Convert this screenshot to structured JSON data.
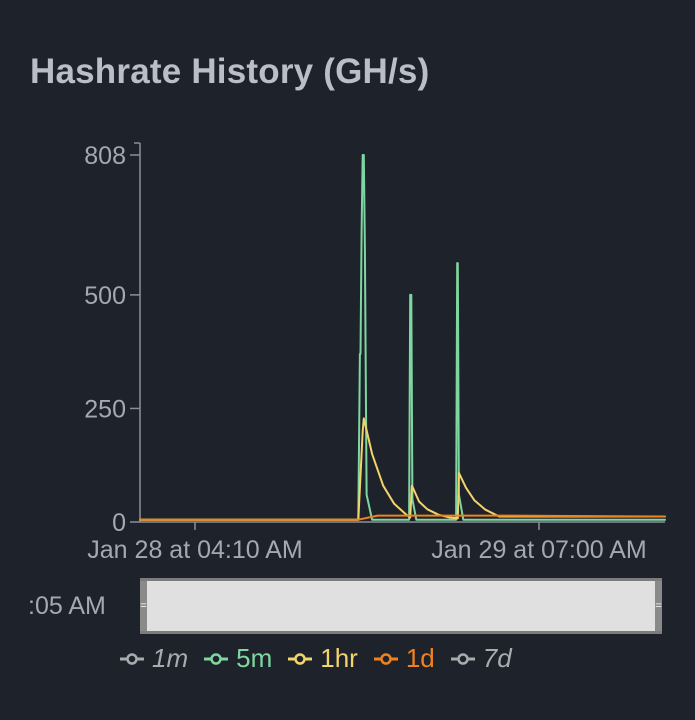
{
  "chart_data": {
    "type": "line",
    "title": "Hashrate History (GH/s)",
    "xlabel": "",
    "ylabel": "",
    "ylim": [
      0,
      808
    ],
    "yticks": [
      0,
      250,
      500,
      808
    ],
    "xtick_labels": [
      "Jan 28 at 04:10 AM",
      "Jan 29 at 07:00 AM"
    ],
    "x_unit": "minutes",
    "series": [
      {
        "name": "5m",
        "color": "#7fd6a0",
        "x": [
          0,
          395,
          398,
          399,
          401,
          403,
          405,
          407,
          410,
          420,
          487,
          489,
          491,
          493,
          500,
          572,
          574,
          575,
          577,
          585,
          950
        ],
        "values": [
          5,
          5,
          370,
          370,
          640,
          808,
          808,
          600,
          60,
          5,
          5,
          500,
          500,
          50,
          5,
          5,
          570,
          570,
          60,
          5,
          5
        ]
      },
      {
        "name": "1hr",
        "color": "#f3d36b",
        "x": [
          0,
          395,
          403,
          405,
          420,
          440,
          460,
          480,
          489,
          492,
          493,
          505,
          520,
          540,
          560,
          575,
          577,
          590,
          605,
          625,
          650,
          950
        ],
        "values": [
          5,
          5,
          200,
          228,
          150,
          80,
          40,
          18,
          10,
          80,
          78,
          45,
          28,
          16,
          10,
          8,
          108,
          75,
          48,
          27,
          12,
          12
        ]
      },
      {
        "name": "1d",
        "color": "#f0821e",
        "x": [
          0,
          395,
          430,
          650,
          950
        ],
        "values": [
          5,
          5,
          14,
          14,
          12
        ]
      }
    ],
    "legend": {
      "placement": "bottom",
      "entries": [
        {
          "name": "1m",
          "color": "#a9abae",
          "italic": true
        },
        {
          "name": "5m",
          "color": "#7fd6a0",
          "italic": false
        },
        {
          "name": "1hr",
          "color": "#f3d36b",
          "italic": false
        },
        {
          "name": "1d",
          "color": "#f0821e",
          "italic": false
        },
        {
          "name": "7d",
          "color": "#a9abae",
          "italic": true
        }
      ]
    },
    "grid": false
  },
  "navigator": {
    "label": ":05 AM"
  }
}
